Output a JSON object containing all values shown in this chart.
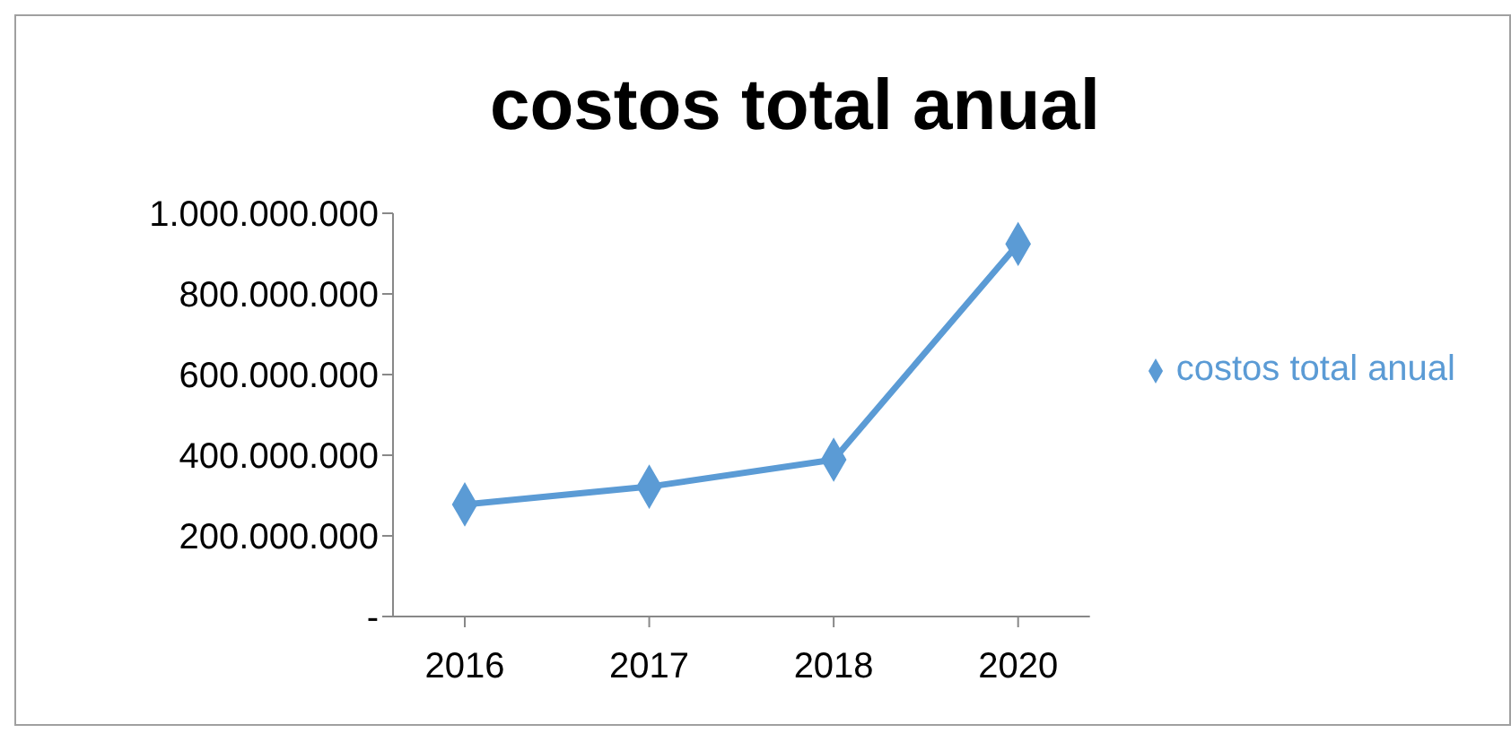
{
  "chart_data": {
    "type": "line",
    "title": "costos total anual",
    "categories": [
      "2016",
      "2017",
      "2018",
      "2020"
    ],
    "series": [
      {
        "name": "costos total anual",
        "color": "#5b9bd5",
        "values": [
          278000000,
          322000000,
          389000000,
          924000000
        ]
      }
    ],
    "ylim": [
      0,
      1000000000
    ],
    "yticks": [
      {
        "value": 0,
        "label": "-"
      },
      {
        "value": 200000000,
        "label": "200.000.000"
      },
      {
        "value": 400000000,
        "label": "400.000.000"
      },
      {
        "value": 600000000,
        "label": "600.000.000"
      },
      {
        "value": 800000000,
        "label": "800.000.000"
      },
      {
        "value": 1000000000,
        "label": "1.000.000.000"
      }
    ],
    "grid": false,
    "legend": "right",
    "marker": "diamond",
    "line_style": "solid"
  }
}
